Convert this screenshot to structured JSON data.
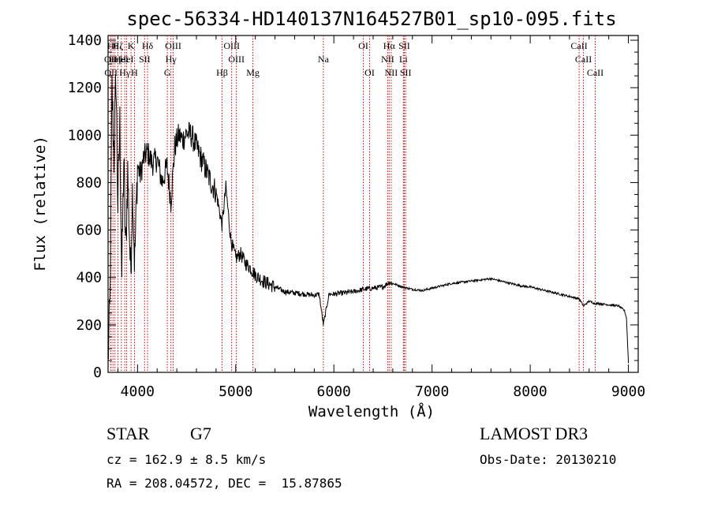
{
  "chart_data": {
    "type": "line",
    "title": "spec-56334-HD140137N164527B01_sp10-095.fits",
    "xlabel": "Wavelength (Å)",
    "ylabel": "Flux (relative)",
    "xlim": [
      3700,
      9100
    ],
    "ylim": [
      0,
      1420
    ],
    "x_ticks": [
      4000,
      5000,
      6000,
      7000,
      8000,
      9000
    ],
    "y_ticks": [
      0,
      200,
      400,
      600,
      800,
      1000,
      1200,
      1400
    ],
    "grid": false,
    "line_color": "#000000",
    "marker_color": "#cc0000",
    "series": [
      {
        "x": [
          3700,
          3720,
          3740,
          3760,
          3780,
          3800,
          3820,
          3840,
          3860,
          3880,
          3900,
          3930,
          3950,
          3970,
          4000,
          4030,
          4060,
          4100,
          4150,
          4200,
          4250,
          4300,
          4340,
          4380,
          4420,
          4460,
          4500,
          4550,
          4600,
          4650,
          4700,
          4750,
          4800,
          4861,
          4900,
          4950,
          5000,
          5050,
          5100,
          5150,
          5200,
          5300,
          5400,
          5500,
          5600,
          5700,
          5800,
          5850,
          5893,
          5950,
          6000,
          6100,
          6200,
          6300,
          6400,
          6500,
          6563,
          6600,
          6700,
          6800,
          6900,
          7000,
          7100,
          7200,
          7300,
          7400,
          7500,
          7600,
          7700,
          7800,
          7900,
          8000,
          8100,
          8200,
          8300,
          8400,
          8500,
          8542,
          8600,
          8662,
          8700,
          8800,
          8900,
          8960,
          8980,
          9000
        ],
        "y": [
          50,
          300,
          1200,
          900,
          1250,
          700,
          1050,
          400,
          900,
          500,
          850,
          400,
          800,
          450,
          870,
          830,
          900,
          930,
          880,
          900,
          800,
          870,
          720,
          950,
          1000,
          980,
          1010,
          1000,
          950,
          900,
          850,
          800,
          760,
          620,
          780,
          560,
          480,
          500,
          460,
          440,
          410,
          380,
          360,
          340,
          335,
          330,
          325,
          330,
          200,
          330,
          330,
          335,
          340,
          350,
          355,
          360,
          380,
          375,
          360,
          350,
          345,
          355,
          365,
          375,
          380,
          385,
          390,
          395,
          385,
          375,
          365,
          360,
          350,
          340,
          330,
          320,
          310,
          280,
          300,
          290,
          290,
          285,
          280,
          260,
          230,
          40
        ]
      }
    ],
    "lines": [
      {
        "x": 3727,
        "label": "OII",
        "row": 2
      },
      {
        "x": 3730,
        "label": "OII",
        "row": 3
      },
      {
        "x": 3750,
        "label": "Hθ",
        "row": 1
      },
      {
        "x": 3770,
        "label": "Hη",
        "row": 2
      },
      {
        "x": 3800,
        "label": "Hζ",
        "row": 1
      },
      {
        "x": 3835,
        "label": "HeI",
        "row": 2
      },
      {
        "x": 3870,
        "label": "Hγ",
        "row": 3
      },
      {
        "x": 3889,
        "label": "HeI",
        "row": 2
      },
      {
        "x": 3934,
        "label": "K",
        "row": 1
      },
      {
        "x": 3969,
        "label": "H",
        "row": 3
      },
      {
        "x": 4072,
        "label": "SII",
        "row": 2
      },
      {
        "x": 4102,
        "label": "Hδ",
        "row": 1
      },
      {
        "x": 4304,
        "label": "G",
        "row": 3
      },
      {
        "x": 4340,
        "label": "Hγ",
        "row": 2
      },
      {
        "x": 4363,
        "label": "OIII",
        "row": 1
      },
      {
        "x": 4861,
        "label": "Hβ",
        "row": 3
      },
      {
        "x": 4959,
        "label": "OIII",
        "row": 1
      },
      {
        "x": 5007,
        "label": "OIII",
        "row": 2
      },
      {
        "x": 5175,
        "label": "Mg",
        "row": 3
      },
      {
        "x": 5893,
        "label": "Na",
        "row": 2
      },
      {
        "x": 6300,
        "label": "OI",
        "row": 1
      },
      {
        "x": 6364,
        "label": "OI",
        "row": 3
      },
      {
        "x": 6548,
        "label": "NII",
        "row": 2
      },
      {
        "x": 6563,
        "label": "Hα",
        "row": 1
      },
      {
        "x": 6584,
        "label": "NII",
        "row": 3
      },
      {
        "x": 6708,
        "label": "Li",
        "row": 2
      },
      {
        "x": 6717,
        "label": "SII",
        "row": 1
      },
      {
        "x": 6731,
        "label": "SII",
        "row": 3
      },
      {
        "x": 8498,
        "label": "CaII",
        "row": 1
      },
      {
        "x": 8542,
        "label": "CaII",
        "row": 2
      },
      {
        "x": 8662,
        "label": "CaII",
        "row": 3
      }
    ]
  },
  "info": {
    "object_class": "STAR",
    "subclass": "G7",
    "survey": "LAMOST DR3",
    "redshift": "cz = 162.9 ± 8.5 km/s",
    "obs_date": "Obs-Date: 20130210",
    "coords": "RA = 208.04572, DEC =  15.87865"
  }
}
